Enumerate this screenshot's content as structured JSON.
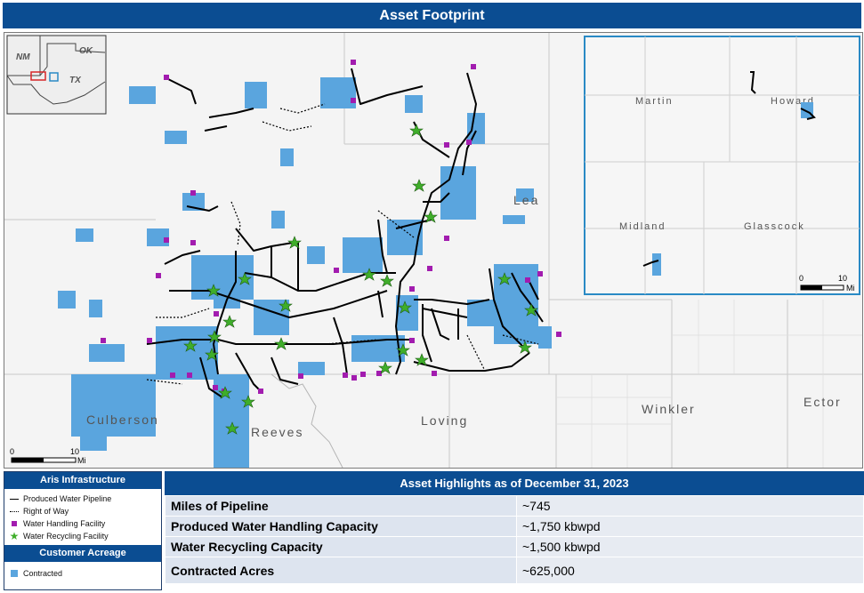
{
  "title": "Asset Footprint",
  "map": {
    "state_labels": [
      "NM",
      "OK",
      "TX"
    ],
    "counties_main": [
      "Lea",
      "Culberson",
      "Reeves",
      "Loving",
      "Winkler",
      "Ector"
    ],
    "counties_inset": [
      "Martin",
      "Howard",
      "Midland",
      "Glasscock"
    ],
    "scale_main": {
      "start": "0",
      "end": "10",
      "unit": "Mi"
    },
    "scale_inset": {
      "start": "0",
      "end": "10",
      "unit": "Mi"
    },
    "colors": {
      "acreage": "#5aa5de",
      "facility": "#a21caf",
      "recycling": "#3fae2a",
      "pipeline": "#000000",
      "inset_border": "#2a8ac5",
      "header": "#0b4d92"
    }
  },
  "legend": {
    "infrastructure_title": "Aris Infrastructure",
    "items": [
      "Produced Water Pipeline",
      "Right of Way",
      "Water Handling Facility",
      "Water Recycling Facility"
    ],
    "acreage_title": "Customer Acreage",
    "acreage_item": "Contracted"
  },
  "highlights": {
    "title": "Asset Highlights as of December 31, 2023",
    "rows": [
      {
        "label": "Miles of Pipeline",
        "value": "~745"
      },
      {
        "label": "Produced Water Handling Capacity",
        "value": "~1,750 kbwpd"
      },
      {
        "label": "Water Recycling Capacity",
        "value": "~1,500 kbwpd"
      },
      {
        "label": "Contracted Acres",
        "value": "~625,000"
      }
    ]
  }
}
